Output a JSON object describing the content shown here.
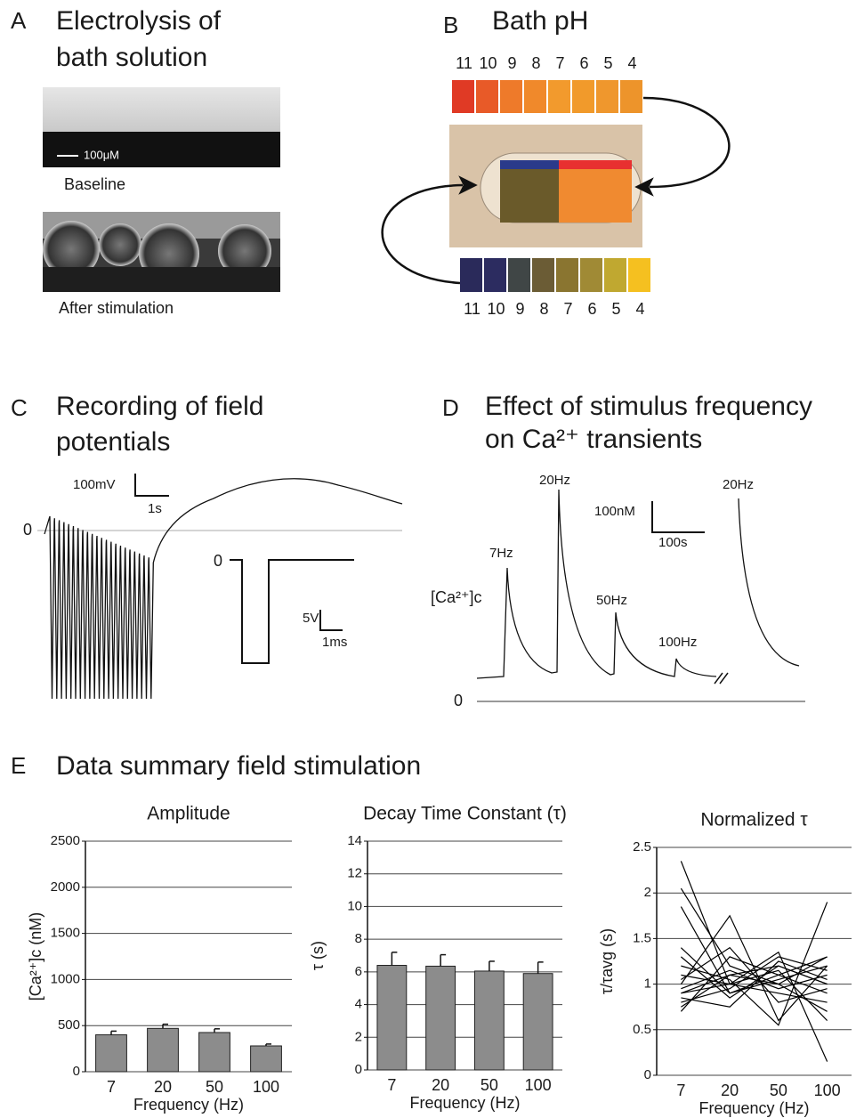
{
  "panels": {
    "A": {
      "letter": "A",
      "title": [
        "Electrolysis of",
        "bath solution"
      ],
      "scale_bar": "100μM",
      "captions": [
        "Baseline",
        "After stimulation"
      ]
    },
    "B": {
      "letter": "B",
      "title": "Bath pH",
      "top_labels": [
        "11",
        "10",
        "9",
        "8",
        "7",
        "6",
        "5",
        "4"
      ],
      "top_colors": [
        "#e03a25",
        "#e85a28",
        "#ee7a2a",
        "#f0892b",
        "#f29a2d",
        "#f19a2b",
        "#ef972d",
        "#ed942b"
      ],
      "bottom_labels": [
        "11",
        "10",
        "9",
        "8",
        "7",
        "6",
        "5",
        "4"
      ],
      "bottom_colors": [
        "#2a2a5a",
        "#2c2c60",
        "#404646",
        "#6b5c35",
        "#8a7530",
        "#a08a35",
        "#c0a830",
        "#f5c020"
      ]
    },
    "C": {
      "letter": "C",
      "title": [
        "Recording of field",
        "potentials"
      ],
      "scale_y": "100mV",
      "scale_x": "1s",
      "zero": "0",
      "inset_zero": "0",
      "inset_scale_y": "5V",
      "inset_scale_x": "1ms"
    },
    "D": {
      "letter": "D",
      "title": [
        "Effect of stimulus frequency",
        "on Ca²⁺ transients"
      ],
      "peak_labels": [
        "7Hz",
        "20Hz",
        "50Hz",
        "100Hz",
        "20Hz"
      ],
      "scale_y": "100nM",
      "scale_x": "100s",
      "y_label": "[Ca²⁺]c",
      "zero": "0"
    },
    "E": {
      "letter": "E",
      "title": "Data summary field stimulation"
    }
  },
  "chart_data": [
    {
      "type": "bar",
      "title": "Amplitude",
      "x_label": "Frequency (Hz)",
      "y_label": "[Ca²⁺]c (nM)",
      "categories": [
        "7",
        "20",
        "50",
        "100"
      ],
      "values": [
        400,
        470,
        425,
        280
      ],
      "errors": [
        40,
        45,
        40,
        20
      ],
      "color": "#8c8c8c",
      "ylim": [
        0,
        2500
      ],
      "yticks": [
        0,
        500,
        1000,
        1500,
        2000,
        2500
      ],
      "grid": true
    },
    {
      "type": "bar",
      "title": "Decay Time Constant (τ)",
      "x_label": "Frequency (Hz)",
      "y_label": "τ (s)",
      "categories": [
        "7",
        "20",
        "50",
        "100"
      ],
      "values": [
        6.4,
        6.35,
        6.05,
        5.9
      ],
      "errors": [
        0.8,
        0.7,
        0.6,
        0.7
      ],
      "color": "#8c8c8c",
      "ylim": [
        0,
        14
      ],
      "yticks": [
        0,
        2,
        4,
        6,
        8,
        10,
        12,
        14
      ],
      "grid": true
    },
    {
      "type": "line",
      "title": "Normalized τ",
      "x_label": "Frequency (Hz)",
      "y_label": "τ/τavg (s)",
      "categories": [
        "7",
        "20",
        "50",
        "100"
      ],
      "ylim": [
        0,
        2.5
      ],
      "yticks": [
        0,
        0.5,
        1,
        1.5,
        2,
        2.5
      ],
      "grid": true,
      "series": [
        {
          "color": "#000000",
          "values": [
            0.9,
            1.1,
            1.2,
            1.0
          ]
        },
        {
          "color": "#000000",
          "values": [
            1.4,
            0.9,
            1.1,
            1.3
          ]
        },
        {
          "color": "#000000",
          "values": [
            2.35,
            1.0,
            0.9,
            0.8
          ]
        },
        {
          "color": "#000000",
          "values": [
            2.05,
            1.2,
            1.0,
            0.7
          ]
        },
        {
          "color": "#000000",
          "values": [
            0.7,
            1.3,
            1.1,
            0.9
          ]
        },
        {
          "color": "#000000",
          "values": [
            1.0,
            1.75,
            0.6,
            1.2
          ]
        },
        {
          "color": "#000000",
          "values": [
            0.8,
            0.95,
            1.3,
            1.15
          ]
        },
        {
          "color": "#000000",
          "values": [
            1.2,
            1.05,
            0.55,
            1.9
          ]
        },
        {
          "color": "#000000",
          "values": [
            0.85,
            0.75,
            1.25,
            1.05
          ]
        },
        {
          "color": "#000000",
          "values": [
            1.1,
            1.0,
            1.35,
            0.15
          ]
        },
        {
          "color": "#000000",
          "values": [
            0.95,
            1.15,
            0.95,
            1.1
          ]
        },
        {
          "color": "#000000",
          "values": [
            1.3,
            0.85,
            1.2,
            1.0
          ]
        },
        {
          "color": "#000000",
          "values": [
            0.75,
            1.1,
            1.0,
            1.3
          ]
        },
        {
          "color": "#000000",
          "values": [
            1.05,
            1.4,
            0.8,
            0.95
          ]
        },
        {
          "color": "#000000",
          "values": [
            0.9,
            1.0,
            1.15,
            0.6
          ]
        },
        {
          "color": "#000000",
          "values": [
            1.85,
            0.9,
            1.05,
            1.2
          ]
        }
      ]
    }
  ]
}
